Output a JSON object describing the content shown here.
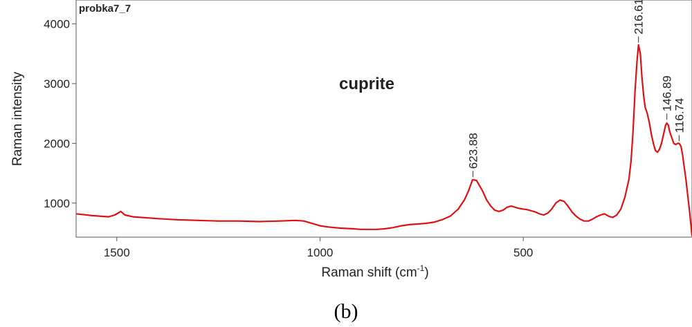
{
  "chart_data": {
    "type": "line",
    "sample_label": "probka7_7",
    "annotation": "cuprite",
    "xlabel": "Raman shift (cm",
    "xlabel_sup": "-1",
    "xlabel_close": ")",
    "ylabel": "Raman intensity",
    "xlim": [
      1600,
      85
    ],
    "ylim": [
      430,
      4400
    ],
    "x_ticks": [
      1500,
      1000,
      500
    ],
    "y_ticks": [
      1000,
      2000,
      3000,
      4000
    ],
    "line_color": "#e01010",
    "peak_labels": [
      {
        "text": "623.88",
        "x": 623.88,
        "y": 1400
      },
      {
        "text": "216.61",
        "x": 216.61,
        "y": 3650
      },
      {
        "text": "146.89",
        "x": 146.89,
        "y": 2360
      },
      {
        "text": "116.74",
        "x": 116.74,
        "y": 2000
      }
    ],
    "series": [
      {
        "x": [
          1600,
          1560,
          1520,
          1505,
          1490,
          1480,
          1460,
          1440,
          1400,
          1350,
          1300,
          1250,
          1200,
          1150,
          1100,
          1060,
          1040,
          1020,
          1000,
          980,
          950,
          920,
          900,
          880,
          860,
          840,
          820,
          800,
          780,
          760,
          740,
          720,
          700,
          680,
          660,
          645,
          635,
          625,
          615,
          600,
          590,
          580,
          570,
          560,
          550,
          540,
          530,
          520,
          510,
          500,
          490,
          480,
          470,
          460,
          450,
          440,
          430,
          420,
          410,
          400,
          390,
          380,
          370,
          360,
          350,
          340,
          330,
          320,
          310,
          300,
          290,
          280,
          270,
          260,
          250,
          240,
          235,
          230,
          225,
          220,
          216.61,
          212,
          208,
          204,
          200,
          195,
          190,
          185,
          180,
          175,
          170,
          165,
          160,
          155,
          150,
          146.89,
          143,
          140,
          135,
          130,
          125,
          120,
          116.74,
          112,
          108,
          104,
          100,
          95,
          90,
          85
        ],
        "y": [
          820,
          790,
          770,
          800,
          860,
          800,
          770,
          760,
          740,
          720,
          710,
          700,
          700,
          690,
          700,
          710,
          700,
          660,
          620,
          600,
          580,
          570,
          560,
          560,
          560,
          570,
          590,
          620,
          640,
          650,
          660,
          680,
          720,
          780,
          900,
          1050,
          1200,
          1390,
          1380,
          1200,
          1050,
          950,
          880,
          860,
          880,
          930,
          950,
          930,
          910,
          900,
          890,
          870,
          850,
          820,
          800,
          830,
          900,
          1000,
          1050,
          1030,
          950,
          850,
          780,
          730,
          700,
          700,
          730,
          770,
          800,
          820,
          780,
          760,
          800,
          900,
          1100,
          1400,
          1700,
          2200,
          2900,
          3400,
          3650,
          3500,
          3100,
          2800,
          2600,
          2500,
          2350,
          2150,
          2000,
          1880,
          1850,
          1900,
          2000,
          2150,
          2300,
          2340,
          2300,
          2200,
          2100,
          2000,
          1980,
          2000,
          2000,
          1950,
          1800,
          1600,
          1400,
          1100,
          800,
          450
        ]
      }
    ]
  },
  "figure_caption": "(b)"
}
